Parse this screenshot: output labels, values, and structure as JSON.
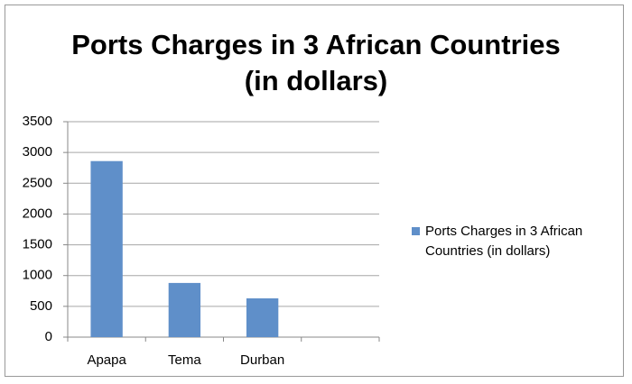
{
  "chart_data": {
    "type": "bar",
    "title": "Ports Charges in 3 African Countries (in dollars)",
    "categories": [
      "Apapa",
      "Tema",
      "Durban",
      null
    ],
    "series": [
      {
        "name": "Ports Charges in 3 African Countries (in dollars)",
        "color": "#5f8fc9",
        "values": [
          2860,
          880,
          630,
          null
        ]
      }
    ],
    "ylim": [
      0,
      3500
    ],
    "yticks": [
      0,
      500,
      1000,
      1500,
      2000,
      2500,
      3000,
      3500
    ],
    "grid": true,
    "legend": "right"
  }
}
